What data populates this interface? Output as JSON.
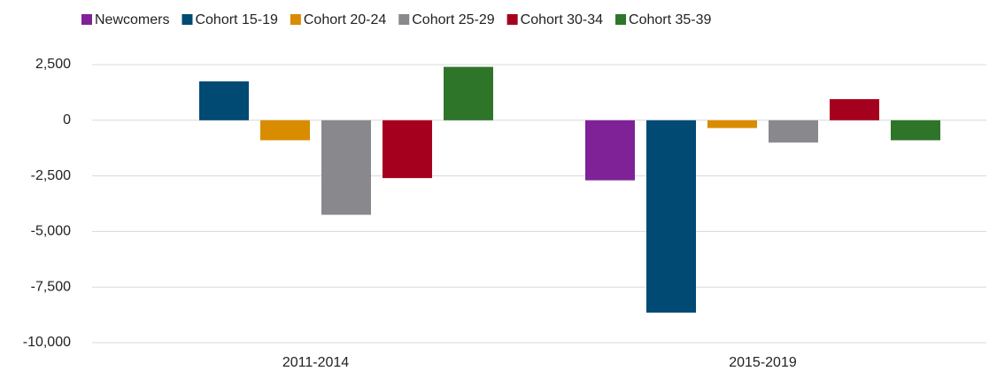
{
  "chart_data": {
    "type": "bar",
    "categories": [
      "2011-2014",
      "2015-2019"
    ],
    "series": [
      {
        "name": "Newcomers",
        "color": "#7f2297",
        "values": [
          null,
          -2700
        ]
      },
      {
        "name": "Cohort 15-19",
        "color": "#004a74",
        "values": [
          1750,
          -8650
        ]
      },
      {
        "name": "Cohort 20-24",
        "color": "#d98c00",
        "values": [
          -900,
          -350
        ]
      },
      {
        "name": "Cohort 25-29",
        "color": "#89888d",
        "values": [
          -4250,
          -1000
        ]
      },
      {
        "name": "Cohort 30-34",
        "color": "#a6001f",
        "values": [
          -2600,
          950
        ]
      },
      {
        "name": "Cohort 35-39",
        "color": "#2e7529",
        "values": [
          2400,
          -900
        ]
      }
    ],
    "ylim": [
      -10000,
      2500
    ],
    "yticks": [
      {
        "value": -10000,
        "label": "-10,000"
      },
      {
        "value": -7500,
        "label": "-7,500"
      },
      {
        "value": -5000,
        "label": "-5,000"
      },
      {
        "value": -2500,
        "label": "-2,500"
      },
      0,
      {
        "value": 2500,
        "label": "2,500"
      }
    ],
    "grid": true,
    "legend": "top"
  }
}
